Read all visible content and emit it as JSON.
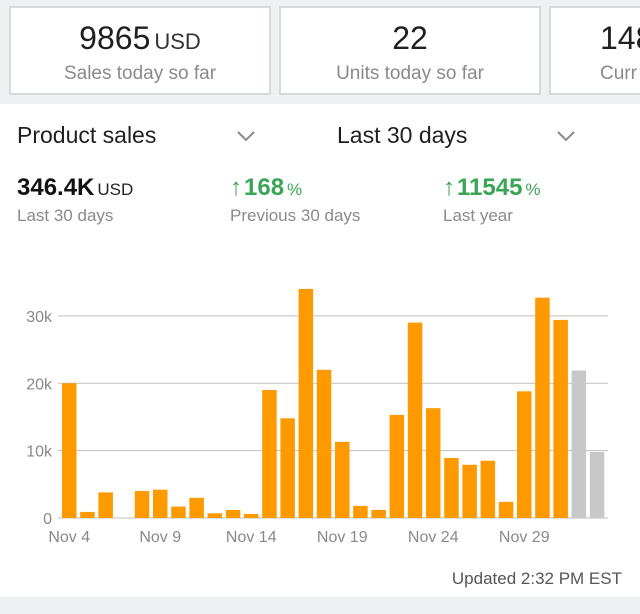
{
  "kpis": [
    {
      "value": "9865",
      "unit": "USD",
      "label": "Sales today so far"
    },
    {
      "value": "22",
      "unit": "",
      "label": "Units today so far"
    },
    {
      "value": "148",
      "unit": "",
      "label": "Curr"
    }
  ],
  "panel": {
    "metric_dropdown": "Product sales",
    "range_dropdown": "Last 30 days",
    "stats": [
      {
        "value": "346.4K",
        "unit": "USD",
        "label": "Last 30 days"
      },
      {
        "value": "168",
        "unit": "%",
        "label": "Previous 30 days",
        "arrow": "↑"
      },
      {
        "value": "11545",
        "unit": "%",
        "label": "Last year",
        "arrow": "↑"
      }
    ],
    "updated": "Updated 2:32 PM EST"
  },
  "colors": {
    "bar": "#ff9900",
    "bar_partial": "#c8c8c8",
    "positive": "#3aa457",
    "grid": "#bfbfbf"
  },
  "chart_data": {
    "type": "bar",
    "categories": [
      "Nov 4",
      "Nov 5",
      "Nov 6",
      "Nov 7",
      "Nov 8",
      "Nov 9",
      "Nov 10",
      "Nov 11",
      "Nov 12",
      "Nov 13",
      "Nov 14",
      "Nov 15",
      "Nov 16",
      "Nov 17",
      "Nov 18",
      "Nov 19",
      "Nov 20",
      "Nov 21",
      "Nov 22",
      "Nov 23",
      "Nov 24",
      "Nov 25",
      "Nov 26",
      "Nov 27",
      "Nov 28",
      "Nov 29",
      "Nov 30",
      "Dec 1",
      "Dec 2",
      "Dec 3"
    ],
    "values": [
      20000,
      900,
      3800,
      0,
      4000,
      4200,
      1700,
      3000,
      700,
      1200,
      600,
      19000,
      14800,
      34000,
      22000,
      11300,
      1800,
      1200,
      15300,
      29000,
      16300,
      8900,
      7900,
      8500,
      2400,
      18800,
      32700,
      29400,
      21900,
      9800
    ],
    "partial": [
      false,
      false,
      false,
      false,
      false,
      false,
      false,
      false,
      false,
      false,
      false,
      false,
      false,
      false,
      false,
      false,
      false,
      false,
      false,
      false,
      false,
      false,
      false,
      false,
      false,
      false,
      false,
      false,
      true,
      true
    ],
    "tick_labels": [
      "Nov 4",
      "Nov 9",
      "Nov 14",
      "Nov 19",
      "Nov 24",
      "Nov 29"
    ],
    "tick_index": [
      0,
      5,
      10,
      15,
      20,
      25
    ],
    "y_ticks": [
      0,
      10000,
      20000,
      30000
    ],
    "y_tick_labels": [
      "0",
      "10k",
      "20k",
      "30k"
    ],
    "ylim": [
      0,
      34000
    ],
    "grid": true
  }
}
